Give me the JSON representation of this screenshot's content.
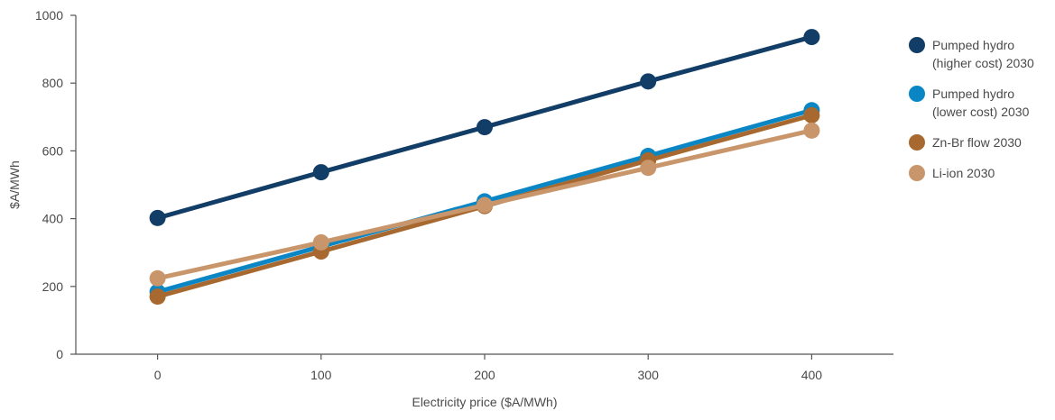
{
  "chart_data": {
    "type": "line",
    "xlabel": "Electricity price ($A/MWh)",
    "ylabel": "$A/MWh",
    "x": [
      0,
      100,
      200,
      300,
      400
    ],
    "x_ticks": [
      "0",
      "100",
      "200",
      "300",
      "400"
    ],
    "y_ticks": [
      "0",
      "200",
      "400",
      "600",
      "800",
      "1000"
    ],
    "xlim": [
      -50,
      450
    ],
    "ylim": [
      0,
      1000
    ],
    "grid": false,
    "legend_position": "right",
    "series": [
      {
        "name_lines": [
          "Pumped hydro",
          "(higher cost) 2030"
        ],
        "color": "#123d66",
        "values": [
          402,
          537,
          670,
          805,
          936
        ]
      },
      {
        "name_lines": [
          "Pumped hydro",
          "(lower cost) 2030"
        ],
        "color": "#0b86c4",
        "values": [
          184,
          318,
          451,
          585,
          720
        ]
      },
      {
        "name_lines": [
          "Zn-Br flow 2030"
        ],
        "color": "#a7692f",
        "values": [
          170,
          303,
          437,
          572,
          705
        ]
      },
      {
        "name_lines": [
          "Li-ion 2030"
        ],
        "color": "#c8966a",
        "values": [
          224,
          330,
          440,
          550,
          660
        ]
      }
    ]
  }
}
